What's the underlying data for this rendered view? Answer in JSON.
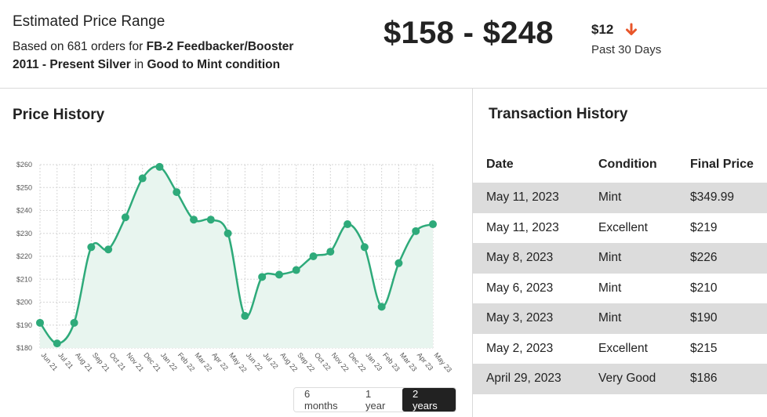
{
  "header": {
    "title": "Estimated Price Range",
    "desc_prefix": "Based on 681 orders for ",
    "product": "FB-2 Feedbacker/Booster 2011 - Present Silver",
    "desc_mid": " in ",
    "condition": "Good to Mint condition",
    "price_range": "$158 - $248",
    "change": "$12",
    "change_direction": "down",
    "change_color": "#e8562a",
    "period": "Past 30 Days"
  },
  "price_history": {
    "title": "Price History",
    "ranges": [
      "6 months",
      "1 year",
      "2 years"
    ],
    "selected_range": "2 years"
  },
  "chart_data": {
    "type": "area",
    "x": [
      "Jun 21",
      "Jul 21",
      "Aug 21",
      "Sep 21",
      "Oct 21",
      "Nov 21",
      "Dec 21",
      "Jan 22",
      "Feb 22",
      "Mar 22",
      "Apr 22",
      "May 22",
      "Jun 22",
      "Jul 22",
      "Aug 22",
      "Sep 22",
      "Oct 22",
      "Nov 22",
      "Dec 22",
      "Jan 23",
      "Feb 23",
      "Mar 23",
      "Apr 23",
      "May 23"
    ],
    "values": [
      191,
      182,
      191,
      224,
      223,
      237,
      254,
      259,
      248,
      236,
      236,
      230,
      194,
      211,
      212,
      214,
      220,
      222,
      234,
      224,
      198,
      217,
      231,
      234
    ],
    "yticks": [
      "$180",
      "$190",
      "$200",
      "$210",
      "$220",
      "$230",
      "$240",
      "$250",
      "$260"
    ],
    "ylim": [
      180,
      260
    ],
    "grid": true,
    "line_color": "#2eaa7a",
    "fill_color": "#e8f5ef"
  },
  "transactions": {
    "title": "Transaction History",
    "columns": [
      "Date",
      "Condition",
      "Final Price"
    ],
    "rows": [
      {
        "date": "May 11, 2023",
        "condition": "Mint",
        "price": "$349.99"
      },
      {
        "date": "May 11, 2023",
        "condition": "Excellent",
        "price": "$219"
      },
      {
        "date": "May 8, 2023",
        "condition": "Mint",
        "price": "$226"
      },
      {
        "date": "May 6, 2023",
        "condition": "Mint",
        "price": "$210"
      },
      {
        "date": "May 3, 2023",
        "condition": "Mint",
        "price": "$190"
      },
      {
        "date": "May 2, 2023",
        "condition": "Excellent",
        "price": "$215"
      },
      {
        "date": "April 29, 2023",
        "condition": "Very Good",
        "price": "$186"
      }
    ]
  }
}
